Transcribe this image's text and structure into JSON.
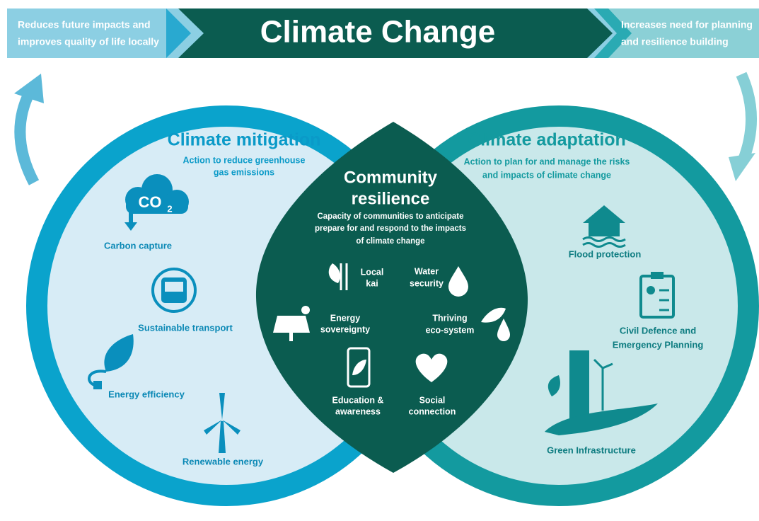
{
  "banner": {
    "left_text": [
      "Reduces future impacts and",
      "improves quality of life locally"
    ],
    "title": "Climate Change",
    "right_text": [
      "Increases need for planning",
      "and resilience building"
    ]
  },
  "mitigation": {
    "title": "Climate mitigation",
    "subtitle": [
      "Action to reduce greenhouse",
      "gas emissions"
    ],
    "co2": {
      "main": "CO",
      "sub": "2"
    },
    "items": [
      [
        "Carbon capture"
      ],
      [
        "Sustainable transport"
      ],
      [
        "Energy efficiency"
      ],
      [
        "Renewable energy"
      ]
    ]
  },
  "community": {
    "title": [
      "Community",
      "resilience"
    ],
    "subtitle": [
      "Capacity of communities to anticipate",
      "prepare for and respond to the impacts",
      "of climate change"
    ],
    "items": [
      [
        "Local",
        "kai"
      ],
      [
        "Water",
        "security"
      ],
      [
        "Energy",
        "sovereignty"
      ],
      [
        "Thriving",
        "eco-system"
      ],
      [
        "Education &",
        "awareness"
      ],
      [
        "Social",
        "connection"
      ]
    ]
  },
  "adaptation": {
    "title": "Climate adaptation",
    "subtitle": [
      "Action to plan for and manage the risks",
      "and impacts of climate change"
    ],
    "items": [
      [
        "Flood protection"
      ],
      [
        "Civil Defence and",
        "Emergency Planning"
      ],
      [
        "Green Infrastructure"
      ]
    ]
  }
}
